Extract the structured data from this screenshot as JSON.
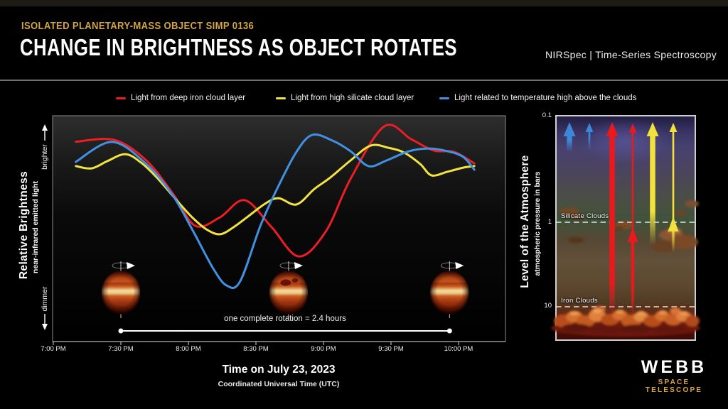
{
  "header": {
    "eyebrow": "ISOLATED PLANETARY-MASS OBJECT SIMP 0136",
    "title": "CHANGE IN BRIGHTNESS AS OBJECT ROTATES",
    "instrument": "NIRSpec | Time-Series Spectroscopy"
  },
  "legend": [
    {
      "label": "Light from deep iron cloud layer",
      "color": "#ec1d23"
    },
    {
      "label": "Light from high silicate cloud layer",
      "color": "#f2e33f"
    },
    {
      "label": "Light related to temperature high above the clouds",
      "color": "#4191e2"
    }
  ],
  "chart_data": {
    "type": "line",
    "title": "Change in brightness as object rotates",
    "xlabel": "Time on July 23, 2023",
    "xlabel_sub": "Coordinated Universal Time (UTC)",
    "ylabel": "Relative Brightness",
    "ylabel_sub": "near-infrared emitted light",
    "y_axis_top": "brighter",
    "y_axis_bottom": "dimmer",
    "x_ticks": [
      "7:00 PM",
      "7:30 PM",
      "8:00 PM",
      "8:30 PM",
      "9:00 PM",
      "9:30 PM",
      "10:00 PM"
    ],
    "x_tick_minutes": [
      0,
      30,
      60,
      90,
      120,
      150,
      180
    ],
    "annotation": "one complete rotation = 2.4 hours",
    "rotation_span_minutes": [
      30,
      176
    ],
    "planets": [
      {
        "t_minutes": 30,
        "spot": false
      },
      {
        "t_minutes": 104.5,
        "spot": true
      },
      {
        "t_minutes": 176,
        "spot": false
      }
    ],
    "series": [
      {
        "name": "Light from deep iron cloud layer",
        "color": "#ec1d23",
        "points": [
          [
            10,
            88.5
          ],
          [
            27,
            89.3
          ],
          [
            41,
            80.5
          ],
          [
            53,
            65.7
          ],
          [
            63,
            51.3
          ],
          [
            74,
            55
          ],
          [
            85,
            62.6
          ],
          [
            97,
            50.6
          ],
          [
            109,
            37.7
          ],
          [
            121,
            48.7
          ],
          [
            132,
            72
          ],
          [
            147,
            95.3
          ],
          [
            159,
            89.6
          ],
          [
            169,
            84.6
          ],
          [
            178,
            84
          ],
          [
            187,
            78.9
          ]
        ]
      },
      {
        "name": "Light from high silicate cloud layer",
        "color": "#f2e33f",
        "points": [
          [
            10,
            77.7
          ],
          [
            17,
            76.7
          ],
          [
            24,
            79.9
          ],
          [
            32,
            83
          ],
          [
            39,
            79.2
          ],
          [
            46,
            72.6
          ],
          [
            55,
            62.3
          ],
          [
            62,
            54.7
          ],
          [
            68,
            49.7
          ],
          [
            74,
            47.5
          ],
          [
            80,
            50.6
          ],
          [
            86,
            55
          ],
          [
            94,
            61
          ],
          [
            100,
            63.5
          ],
          [
            108,
            60.7
          ],
          [
            116,
            67.6
          ],
          [
            123,
            72.6
          ],
          [
            132,
            80.2
          ],
          [
            141,
            86.8
          ],
          [
            149,
            85.8
          ],
          [
            156,
            83.6
          ],
          [
            163,
            78.6
          ],
          [
            168,
            73.6
          ],
          [
            175,
            75.2
          ],
          [
            182,
            77
          ],
          [
            187,
            77.7
          ]
        ]
      },
      {
        "name": "Light related to temperature high above the clouds",
        "color": "#4191e2",
        "points": [
          [
            10,
            79.6
          ],
          [
            26,
            88.4
          ],
          [
            41,
            78.9
          ],
          [
            53,
            64.8
          ],
          [
            62,
            49.1
          ],
          [
            71,
            32.4
          ],
          [
            77,
            24.8
          ],
          [
            83,
            26.7
          ],
          [
            92,
            51.3
          ],
          [
            100,
            68.9
          ],
          [
            108,
            84
          ],
          [
            115,
            91.5
          ],
          [
            124,
            89
          ],
          [
            132,
            84.3
          ],
          [
            140,
            77.7
          ],
          [
            148,
            80.2
          ],
          [
            158,
            84.3
          ],
          [
            167,
            85.5
          ],
          [
            175,
            84.3
          ],
          [
            182,
            81.8
          ],
          [
            187,
            76.1
          ]
        ]
      }
    ]
  },
  "panel": {
    "title": "Level of the Atmosphere",
    "subtitle": "atmospheric pressure in bars",
    "pressure_labels": [
      "0.1",
      "1",
      "10"
    ],
    "layers": [
      {
        "label": "Silicate Clouds",
        "pressure": "1",
        "y": 313
      },
      {
        "label": "Iron Clouds",
        "pressure": "10",
        "y": 432
      }
    ],
    "arrows": [
      {
        "color": "#3d86d8",
        "x": 801,
        "style": "thick",
        "from_y": 214,
        "to_y": 172
      },
      {
        "color": "#3d86d8",
        "x": 829,
        "style": "thin",
        "from_y": 211,
        "to_y": 173
      },
      {
        "color": "#e9191d",
        "x": 861,
        "style": "thick",
        "from_y": 446,
        "to_y": 172
      },
      {
        "color": "#e9191d",
        "x": 890,
        "style": "thin",
        "from_y": 446,
        "to_y": 174,
        "mid_head_y": 332
      },
      {
        "color": "#f2e13c",
        "x": 918,
        "style": "thick",
        "from_y": 345,
        "to_y": 172
      },
      {
        "color": "#f2e13c",
        "x": 947,
        "style": "thin",
        "from_y": 355,
        "to_y": 173,
        "mid_head_y": 317
      }
    ]
  },
  "logo": {
    "name": "WEBB",
    "sub": "SPACE TELESCOPE"
  }
}
